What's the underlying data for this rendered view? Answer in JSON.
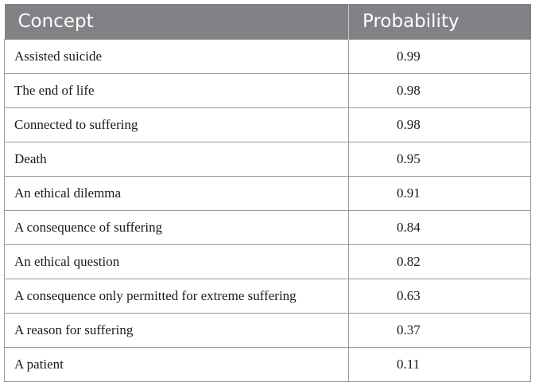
{
  "table": {
    "headers": [
      "Concept",
      "Probability"
    ],
    "rows": [
      {
        "concept": "Assisted suicide",
        "probability": "0.99"
      },
      {
        "concept": "The end of life",
        "probability": "0.98"
      },
      {
        "concept": "Connected to suffering",
        "probability": "0.98"
      },
      {
        "concept": "Death",
        "probability": "0.95"
      },
      {
        "concept": "An ethical dilemma",
        "probability": "0.91"
      },
      {
        "concept": "A consequence of suffering",
        "probability": "0.84"
      },
      {
        "concept": "An ethical question",
        "probability": "0.82"
      },
      {
        "concept": "A consequence only permitted for extreme suffering",
        "probability": "0.63"
      },
      {
        "concept": "A reason for suffering",
        "probability": "0.37"
      },
      {
        "concept": "A patient",
        "probability": "0.11"
      }
    ]
  },
  "colors": {
    "header_background": "#808285",
    "header_text": "#ffffff",
    "border": "#9a9a9a"
  }
}
